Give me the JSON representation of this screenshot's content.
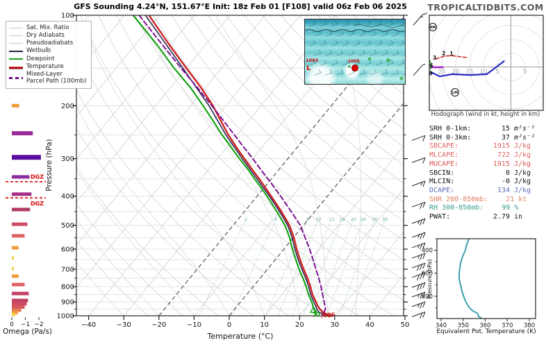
{
  "title": "GFS Sounding 4.24°N, 151.67°E Init: 18z Feb 01 [F108] valid 06z Feb 06 2025",
  "watermark": "TROPICALTIDBITS.COM",
  "colors": {
    "temperature": "#cf1d1d",
    "dewpoint": "#17a317",
    "wetbulb": "#26264f",
    "parcel": "#7d0f93",
    "grid": "#e4e4e4",
    "isotherm": "#d9d9d9",
    "adiabat": "#d6d6d6",
    "mixing_ratio": "#6ab0aa",
    "dgz": "#d40000",
    "hodo_low": "#2929c8",
    "hodo_mid": "#d23b3b",
    "hodo_upper": "#a020c0",
    "hodo_top": "#1f9e1f",
    "theta_e_line": "#3d9fac",
    "cape_text": "#e2615c",
    "dcape_text": "#5b6bbf",
    "shr_text": "#e0825f",
    "rh_text": "#3a9e8e"
  },
  "legend": {
    "items": [
      {
        "label": "Sat. Mix. Ratio",
        "style": "gray"
      },
      {
        "label": "Dry Adiabats",
        "style": "gray"
      },
      {
        "label": "Pseudoadiabats",
        "style": "gray"
      },
      {
        "label": "Wetbulb",
        "style": "navy"
      },
      {
        "label": "Dewpoint",
        "style": "green"
      },
      {
        "label": "Temperature",
        "style": "red"
      },
      {
        "label": "Mixed-Layer\nParcel Path (100mb)",
        "style": "purple-dash"
      }
    ]
  },
  "axes": {
    "pressure_label": "Pressure (hPa)",
    "pressure_ticks": [
      100,
      200,
      300,
      400,
      500,
      600,
      700,
      800,
      900,
      1000
    ],
    "temp_label": "Temperature (°C)",
    "temp_ticks": [
      -40,
      -30,
      -20,
      -10,
      0,
      10,
      20,
      30,
      40,
      50
    ],
    "omega_label": "Omega (Pa/s)",
    "omega_ticks": [
      0,
      -1,
      -2
    ]
  },
  "map_inset": {
    "contour_label": "1003",
    "low_symbol": "L",
    "station_label": "1005"
  },
  "stats": {
    "rows": [
      {
        "label": "SRH 0-1km:",
        "value": "15",
        "unit": "m²s⁻²",
        "color": "#111111",
        "math": true
      },
      {
        "label": "SRH 0-3km:",
        "value": "37",
        "unit": "m²s⁻²",
        "color": "#111111",
        "math": true
      },
      {
        "label": "SBCAPE:",
        "value": "1915",
        "unit": "J/kg",
        "color": "#e2615c",
        "math": false
      },
      {
        "label": "MLCAPE:",
        "value": "722",
        "unit": "J/kg",
        "color": "#e2615c",
        "math": false
      },
      {
        "label": "MUCAPE:",
        "value": "1915",
        "unit": "J/kg",
        "color": "#d8544f",
        "math": false
      },
      {
        "label": "SBCIN:",
        "value": "0",
        "unit": "J/kg",
        "color": "#111111",
        "math": false
      },
      {
        "label": "MLCIN:",
        "value": "-0",
        "unit": "J/kg",
        "color": "#111111",
        "math": false
      },
      {
        "label": "DCAPE:",
        "value": "134",
        "unit": "J/kg",
        "color": "#5b6bbf",
        "math": false
      },
      {
        "label": "SHR 200-850mb:",
        "value": "21",
        "unit": "kt",
        "color": "#e0825f",
        "math": false
      },
      {
        "label": "RH 300-850mb:",
        "value": "99",
        "unit": "%",
        "color": "#3a9e8e",
        "math": false
      },
      {
        "label": "PWAT:",
        "value": "2.79",
        "unit": "in",
        "color": "#111111",
        "math": false
      }
    ]
  },
  "chart_data": [
    {
      "id": "skewt",
      "type": "line",
      "title": "GFS Sounding 4.24°N, 151.67°E Init: 18z Feb 01 [F108] valid 06z Feb 06 2025",
      "xlabel": "Temperature (°C)",
      "ylabel": "Pressure (hPa)",
      "x_range": [
        -40,
        50
      ],
      "y_range_hpa": [
        100,
        1000
      ],
      "y_scale": "log",
      "highlighted_isotherms_c": [
        -20,
        0
      ],
      "mixing_ratio_labels_gkg": [
        2,
        4,
        8,
        10,
        13,
        16,
        20,
        24,
        30,
        36
      ],
      "series": [
        {
          "name": "Wetbulb",
          "color": "#26264f",
          "width": 1.6,
          "points_p_c": [
            [
              100,
              -94
            ],
            [
              150,
              -71
            ],
            [
              200,
              -54.8
            ],
            [
              250,
              -43.2
            ],
            [
              300,
              -33
            ],
            [
              350,
              -24.1
            ],
            [
              400,
              -16.5
            ],
            [
              450,
              -10
            ],
            [
              500,
              -4.5
            ],
            [
              550,
              -0.3
            ],
            [
              600,
              3.1
            ],
            [
              650,
              6.5
            ],
            [
              700,
              9.8
            ],
            [
              750,
              13
            ],
            [
              800,
              15.8
            ],
            [
              850,
              18.2
            ],
            [
              900,
              20.9
            ],
            [
              950,
              23.4
            ],
            [
              975,
              24.8
            ],
            [
              1000,
              28.3
            ]
          ]
        },
        {
          "name": "Dewpoint",
          "color": "#17a317",
          "width": 2.2,
          "points_p_c": [
            [
              100,
              -97.5
            ],
            [
              125,
              -84
            ],
            [
              150,
              -73.5
            ],
            [
              175,
              -64
            ],
            [
              200,
              -56.5
            ],
            [
              225,
              -50
            ],
            [
              250,
              -44.3
            ],
            [
              275,
              -38.8
            ],
            [
              300,
              -33.8
            ],
            [
              325,
              -29
            ],
            [
              350,
              -24.8
            ],
            [
              375,
              -20.8
            ],
            [
              400,
              -17.2
            ],
            [
              450,
              -10.8
            ],
            [
              500,
              -5.3
            ],
            [
              550,
              -1
            ],
            [
              600,
              2.4
            ],
            [
              650,
              5.8
            ],
            [
              700,
              9
            ],
            [
              750,
              12.2
            ],
            [
              800,
              15.1
            ],
            [
              850,
              17.6
            ],
            [
              900,
              20.3
            ],
            [
              925,
              21.4
            ],
            [
              950,
              22.6
            ],
            [
              975,
              23.8
            ],
            [
              1000,
              24.8
            ]
          ]
        },
        {
          "name": "Temperature",
          "color": "#cf1d1d",
          "width": 2.4,
          "points_p_c": [
            [
              100,
              -93
            ],
            [
              125,
              -80.5
            ],
            [
              150,
              -70
            ],
            [
              175,
              -61
            ],
            [
              200,
              -53.7
            ],
            [
              225,
              -47.8
            ],
            [
              250,
              -42.5
            ],
            [
              275,
              -37.3
            ],
            [
              300,
              -32.4
            ],
            [
              325,
              -27.8
            ],
            [
              350,
              -23.5
            ],
            [
              375,
              -19.6
            ],
            [
              400,
              -16
            ],
            [
              450,
              -9.5
            ],
            [
              500,
              -4
            ],
            [
              550,
              0.2
            ],
            [
              600,
              3.6
            ],
            [
              650,
              7
            ],
            [
              700,
              10.3
            ],
            [
              750,
              13.5
            ],
            [
              800,
              16.3
            ],
            [
              850,
              18.7
            ],
            [
              900,
              21.5
            ],
            [
              925,
              22.7
            ],
            [
              950,
              24.2
            ],
            [
              975,
              26
            ],
            [
              990,
              27.5
            ],
            [
              1000,
              30
            ]
          ]
        },
        {
          "name": "Mixed-Layer Parcel Path (100mb)",
          "color": "#7d0f93",
          "width": 2,
          "dash": "7 4",
          "points_p_c": [
            [
              100,
              -95.8
            ],
            [
              125,
              -82.5
            ],
            [
              150,
              -71.5
            ],
            [
              175,
              -62
            ],
            [
              200,
              -54
            ],
            [
              225,
              -47
            ],
            [
              250,
              -40.8
            ],
            [
              275,
              -35.2
            ],
            [
              300,
              -30
            ],
            [
              325,
              -25.4
            ],
            [
              350,
              -21
            ],
            [
              375,
              -17
            ],
            [
              400,
              -13.3
            ],
            [
              450,
              -6.7
            ],
            [
              500,
              -0.9
            ],
            [
              550,
              3.4
            ],
            [
              600,
              7.3
            ],
            [
              650,
              10.7
            ],
            [
              700,
              13.8
            ],
            [
              750,
              16.7
            ],
            [
              800,
              19.3
            ],
            [
              850,
              21.6
            ],
            [
              900,
              23.8
            ],
            [
              950,
              25.8
            ],
            [
              1000,
              26.5
            ]
          ]
        }
      ],
      "wind_barbs": [
        {
          "p": 104,
          "kt": 15,
          "dir": "W"
        },
        {
          "p": 153,
          "kt": 5,
          "dir": "W"
        },
        {
          "p": 254,
          "kt": 10,
          "dir": "E"
        },
        {
          "p": 301,
          "kt": 10,
          "dir": "E"
        },
        {
          "p": 360,
          "kt": 15,
          "dir": "E"
        },
        {
          "p": 423,
          "kt": 20,
          "dir": "E"
        },
        {
          "p": 480,
          "kt": 25,
          "dir": "E"
        },
        {
          "p": 534,
          "kt": 25,
          "dir": "E"
        },
        {
          "p": 578,
          "kt": 25,
          "dir": "E"
        },
        {
          "p": 626,
          "kt": 25,
          "dir": "E"
        },
        {
          "p": 675,
          "kt": 30,
          "dir": "E"
        },
        {
          "p": 726,
          "kt": 30,
          "dir": "E"
        },
        {
          "p": 784,
          "kt": 30,
          "dir": "E"
        },
        {
          "p": 843,
          "kt": 25,
          "dir": "E"
        },
        {
          "p": 908,
          "kt": 25,
          "dir": "E"
        },
        {
          "p": 981,
          "kt": 20,
          "dir": "E"
        }
      ],
      "surface_labels": {
        "dewpoint_f": "77",
        "separator": "|",
        "temp_f": "82F"
      }
    },
    {
      "id": "omega",
      "type": "bar",
      "orientation": "horizontal",
      "xlabel": "Omega (Pa/s)",
      "x_ticks": [
        0,
        -1,
        -2
      ],
      "dgz_label": "DGZ",
      "dgz_pressures": [
        358,
        405
      ],
      "bars": [
        {
          "p": 200,
          "omega": -0.55,
          "color": "#f09c3c"
        },
        {
          "p": 247,
          "omega": -1.55,
          "color": "#9b2d9b",
          "h": 6
        },
        {
          "p": 297,
          "omega": -2.15,
          "color": "#5c10a0",
          "h": 7
        },
        {
          "p": 345,
          "omega": -1.3,
          "color": "#8b2f9e"
        },
        {
          "p": 394,
          "omega": -1.45,
          "color": "#a62d88"
        },
        {
          "p": 443,
          "omega": -1.35,
          "color": "#b03a5e"
        },
        {
          "p": 496,
          "omega": -1.15,
          "color": "#cc4a62"
        },
        {
          "p": 542,
          "omega": -0.95,
          "color": "#dd6363"
        },
        {
          "p": 594,
          "omega": -0.5,
          "color": "#f09c3c"
        },
        {
          "p": 643,
          "omega": -0.15,
          "color": "#f3cf45"
        },
        {
          "p": 697,
          "omega": -0.15,
          "color": "#f3cf45"
        },
        {
          "p": 738,
          "omega": -0.5,
          "color": "#f09c3c"
        },
        {
          "p": 787,
          "omega": -0.95,
          "color": "#dd6363"
        },
        {
          "p": 843,
          "omega": -1.25,
          "color": "#c24064"
        },
        {
          "p": 889,
          "omega": -1.2,
          "color": "#c24064"
        },
        {
          "p": 912,
          "omega": -1.1,
          "color": "#cc4a62"
        },
        {
          "p": 935,
          "omega": -0.95,
          "color": "#d8575e"
        },
        {
          "p": 958,
          "omega": -0.7,
          "color": "#e87a50"
        },
        {
          "p": 977,
          "omega": -0.45,
          "color": "#f09c3c"
        },
        {
          "p": 990,
          "omega": -0.25,
          "color": "#f3cf45"
        }
      ]
    },
    {
      "id": "hodograph",
      "type": "line",
      "caption": "Hodograph (wind in kt, height in km)",
      "ring_interval_kt": 5,
      "ring_labels_left_kt": [
        25,
        20,
        15,
        10,
        5
      ],
      "ring_labels_right_kt": [
        5
      ],
      "segments": [
        {
          "name": "0-6km",
          "color": "#2929c8",
          "width": 2.2,
          "points_uv_kt": [
            [
              -29,
              -1.8
            ],
            [
              -25.7,
              -3.4
            ],
            [
              -21.3,
              -2.6
            ],
            [
              -14.8,
              -2.9
            ],
            [
              -8.8,
              -2.6
            ],
            [
              -2.6,
              2.1
            ]
          ]
        },
        {
          "name": "6-9km",
          "color": "#d23b3b",
          "width": 1.8,
          "dash": "5 3",
          "points_uv_kt": [
            [
              -27.2,
              2.9
            ],
            [
              -24,
              3.9
            ],
            [
              -21.5,
              4.1
            ],
            [
              -16.2,
              3.4
            ]
          ]
        },
        {
          "name": "storm-relative",
          "color": "#a020c0",
          "width": 2.5,
          "points_uv_kt": [
            [
              -29,
              -0.1
            ],
            [
              -24.6,
              -0.1
            ]
          ]
        },
        {
          "name": "9-12km",
          "color": "#1f9e1f",
          "width": 1.5,
          "dash": "3 2",
          "points_uv_kt": [
            [
              -29.3,
              2.2
            ],
            [
              -28.6,
              0.6
            ],
            [
              -29.2,
              -1
            ]
          ]
        }
      ],
      "height_marks": [
        {
          "km": "1",
          "u": -21.5,
          "v": 4.8
        },
        {
          "km": "2",
          "u": -24.3,
          "v": 4.9
        },
        {
          "km": "3",
          "u": -27.6,
          "v": 3.2
        },
        {
          "km": "6",
          "u": -28.8,
          "v": 0.5
        },
        {
          "km": "9",
          "u": -28.9,
          "v": -2.4
        }
      ],
      "storm_motion_markers": [
        "RM",
        "LM"
      ]
    },
    {
      "id": "theta_e",
      "type": "line",
      "xlabel": "Equivalent Pot. Temperature (K)",
      "ylabel": "Pressure (hPa)",
      "x_ticks": [
        340,
        350,
        360,
        370,
        380
      ],
      "y_ticks": [
        400,
        600,
        800
      ],
      "x_range": [
        338,
        382
      ],
      "p_range": [
        300,
        1000
      ],
      "color": "#3d9fac",
      "points_p_k": [
        [
          300,
          352.6
        ],
        [
          350,
          351.6
        ],
        [
          400,
          351
        ],
        [
          450,
          349.8
        ],
        [
          500,
          349
        ],
        [
          550,
          348.5
        ],
        [
          600,
          348.2
        ],
        [
          650,
          348.2
        ],
        [
          700,
          348.8
        ],
        [
          750,
          349.4
        ],
        [
          800,
          350.2
        ],
        [
          850,
          351.2
        ],
        [
          900,
          352.8
        ],
        [
          925,
          354.2
        ],
        [
          950,
          356.6
        ],
        [
          975,
          357
        ],
        [
          1000,
          358.8
        ]
      ]
    }
  ]
}
